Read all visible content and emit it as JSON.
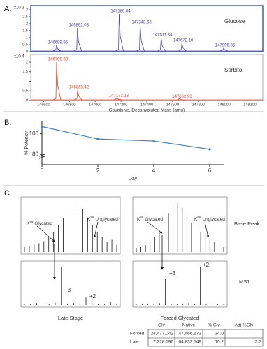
{
  "chart_data": [
    {
      "type": "spectrum",
      "panel_label": "A.",
      "legend": "Glucose",
      "y_exponent": "x10 3",
      "color": "#4a47b8",
      "frame_color": "#3b5fc8",
      "peaks": {
        "x": [
          146699.95,
          146862.03,
          147186.04,
          147348.63,
          147511.34,
          147672.18,
          147996.35
        ],
        "values": [
          0.45,
          1.7,
          2.7,
          1.9,
          1.0,
          0.6,
          0.25
        ]
      },
      "xlim": [
        146500,
        148300
      ],
      "ylim": [
        0,
        3.3
      ],
      "yticks": [
        0,
        0.5,
        1,
        1.5,
        2,
        2.5,
        3
      ]
    },
    {
      "type": "spectrum",
      "legend": "Sorbitol",
      "y_exponent": "x10 4",
      "color": "#e8432c",
      "frame_color": "#999999",
      "peaks": {
        "x": [
          146700.59,
          146863.42,
          147172.13,
          147662.93
        ],
        "values": [
          2.0,
          0.55,
          0.12,
          0.05
        ]
      },
      "xlim": [
        146500,
        148300
      ],
      "ylim": [
        0,
        2.4
      ],
      "yticks": [
        0,
        0.5,
        1,
        1.5,
        2
      ],
      "xticks": [
        146600,
        146800,
        147000,
        147200,
        147400,
        147600,
        147800,
        148000,
        148200
      ],
      "xlabel": "Counts vs. Deconvoluted Mass (amu)"
    },
    {
      "type": "line",
      "panel_label": "B.",
      "ylabel": "% Potency",
      "xlabel": "Day",
      "color": "#3d82c4",
      "x": [
        0,
        2,
        4,
        6
      ],
      "values": [
        107,
        95,
        93,
        85
      ],
      "xlim": [
        0,
        6.5
      ],
      "xticks": [
        0,
        2,
        4,
        6
      ],
      "ylim": [
        70,
        112
      ],
      "yticks": [
        80,
        100
      ]
    }
  ],
  "panel_c": {
    "panel_label": "C.",
    "row_labels": [
      "Base Peak",
      "MS1"
    ],
    "column_labels": [
      "Late Stage",
      "Forced Glycated"
    ],
    "glycated": {
      "base": "K",
      "sup": "96",
      "text": "Glycated"
    },
    "unglycated": {
      "base": "K",
      "sup": "96",
      "text": "Unglycated"
    },
    "charges": [
      "+3",
      "+2"
    ],
    "spectra": [
      {
        "intensity": [
          10,
          12,
          15,
          18,
          22,
          30,
          40,
          55,
          70,
          85,
          95,
          80,
          88,
          70,
          55,
          40,
          30,
          20,
          25,
          15
        ]
      },
      {
        "intensity": [
          8,
          10,
          14,
          20,
          30,
          45,
          60,
          80,
          95,
          100,
          90,
          75,
          60,
          50,
          40,
          35,
          28,
          20,
          15,
          10
        ]
      },
      {
        "intensity": [
          3,
          2,
          5,
          4,
          3,
          6,
          100,
          4,
          5,
          3,
          20,
          6,
          4,
          3,
          8,
          2
        ]
      },
      {
        "intensity": [
          2,
          3,
          4,
          3,
          5,
          70,
          4,
          3,
          4,
          5,
          3,
          100,
          4,
          2,
          3,
          2
        ]
      }
    ],
    "table": {
      "header": [
        "Gly",
        "Native",
        "% Gly",
        "Adj %Gly"
      ],
      "rows": [
        [
          "Forced",
          "24,477,042",
          "47,466,173",
          "34.0"
        ],
        [
          "Late",
          "7,328,196",
          "64,833,549",
          "10.2",
          "3.7"
        ]
      ]
    }
  }
}
